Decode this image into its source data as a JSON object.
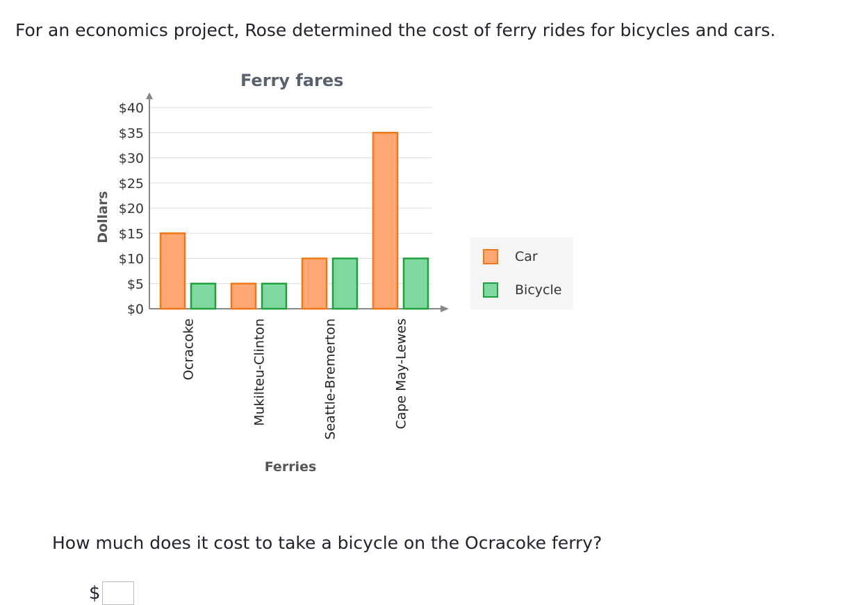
{
  "intro": "For an economics project, Rose determined the cost of ferry rides for bicycles and cars.",
  "question": "How much does it cost to take a bicycle on the Ocracoke ferry?",
  "answer": {
    "prefix": "$",
    "value": ""
  },
  "colors": {
    "car_fill": "#ffa873",
    "car_stroke": "#f07818",
    "bicycle_fill": "#7ed8a0",
    "bicycle_stroke": "#1ea03c",
    "grid": "#dddddd",
    "axis": "#888888"
  },
  "chart_data": {
    "type": "bar",
    "title": "Ferry fares",
    "xlabel": "Ferries",
    "ylabel": "Dollars",
    "categories": [
      "Ocracoke",
      "Mukilteu-Clinton",
      "Seattle-Bremerton",
      "Cape May-Lewes"
    ],
    "series": [
      {
        "name": "Car",
        "values": [
          15,
          5,
          10,
          35
        ]
      },
      {
        "name": "Bicycle",
        "values": [
          5,
          5,
          10,
          10
        ]
      }
    ],
    "yticks": [
      "$0",
      "$5",
      "$10",
      "$15",
      "$20",
      "$25",
      "$30",
      "$35",
      "$40"
    ],
    "ytick_values": [
      0,
      5,
      10,
      15,
      20,
      25,
      30,
      35,
      40
    ],
    "ylim": [
      0,
      40
    ],
    "grid": true,
    "legend": "right"
  }
}
